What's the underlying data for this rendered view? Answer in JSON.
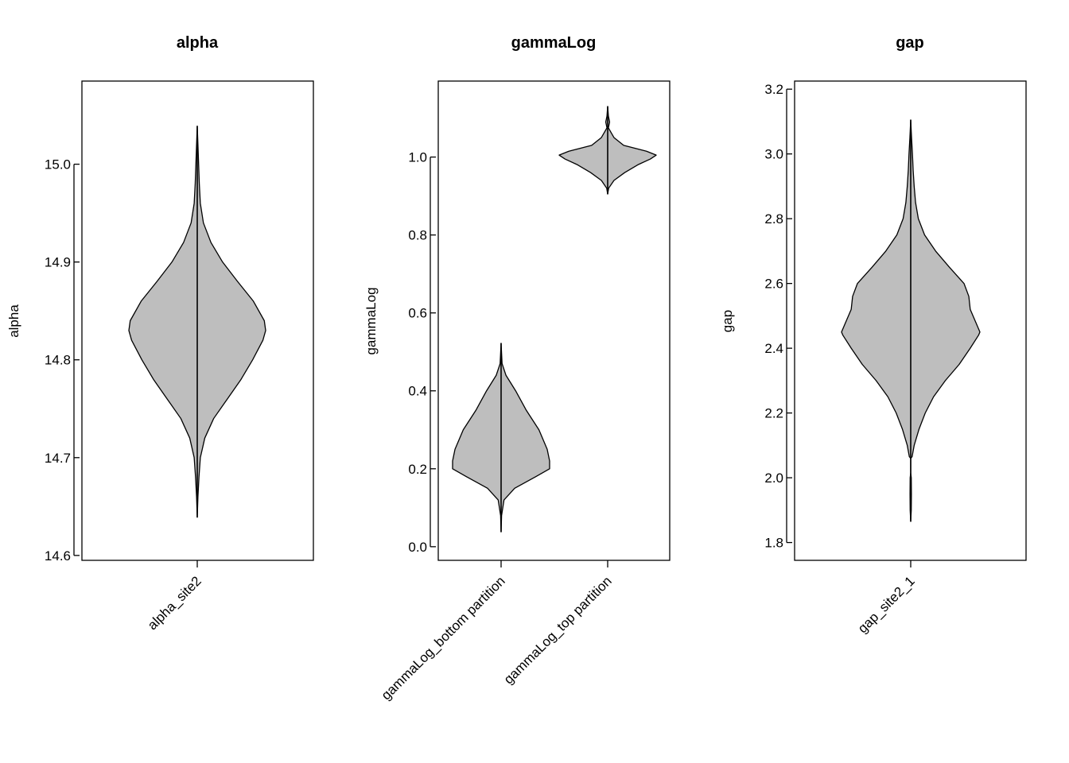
{
  "chart_data": [
    {
      "type": "violin",
      "title": "alpha",
      "ylabel": "alpha",
      "ylim": [
        14.595,
        15.085
      ],
      "yticks": [
        "14.6",
        "14.7",
        "14.8",
        "14.9",
        "15.0"
      ],
      "ytick_values": [
        14.6,
        14.7,
        14.8,
        14.9,
        15.0
      ],
      "categories": [
        "alpha_site2"
      ],
      "violins": [
        {
          "name": "alpha_site2",
          "min": 14.639,
          "max": 15.039,
          "profile": [
            [
              14.639,
              0.0
            ],
            [
              14.66,
              0.01
            ],
            [
              14.68,
              0.025
            ],
            [
              14.7,
              0.045
            ],
            [
              14.72,
              0.11
            ],
            [
              14.74,
              0.24
            ],
            [
              14.76,
              0.44
            ],
            [
              14.78,
              0.64
            ],
            [
              14.8,
              0.81
            ],
            [
              14.82,
              0.96
            ],
            [
              14.83,
              1.0
            ],
            [
              14.84,
              0.98
            ],
            [
              14.86,
              0.82
            ],
            [
              14.88,
              0.59
            ],
            [
              14.9,
              0.37
            ],
            [
              14.92,
              0.2
            ],
            [
              14.94,
              0.09
            ],
            [
              14.96,
              0.045
            ],
            [
              14.98,
              0.03
            ],
            [
              15.0,
              0.02
            ],
            [
              15.02,
              0.01
            ],
            [
              15.039,
              0.0
            ]
          ]
        }
      ],
      "fill_color": "#bebebe"
    },
    {
      "type": "violin",
      "title": "gammaLog",
      "ylabel": "gammaLog",
      "ylim": [
        -0.035,
        1.195
      ],
      "yticks": [
        "0.0",
        "0.2",
        "0.4",
        "0.6",
        "0.8",
        "1.0"
      ],
      "ytick_values": [
        0.0,
        0.2,
        0.4,
        0.6,
        0.8,
        1.0
      ],
      "categories": [
        "gammaLog_bottom partition",
        "gammaLog_top partition"
      ],
      "violins": [
        {
          "name": "gammaLog_bottom partition",
          "min": 0.038,
          "max": 0.522,
          "profile": [
            [
              0.038,
              0.0
            ],
            [
              0.08,
              0.01
            ],
            [
              0.12,
              0.06
            ],
            [
              0.15,
              0.28
            ],
            [
              0.18,
              0.72
            ],
            [
              0.2,
              1.0
            ],
            [
              0.22,
              1.0
            ],
            [
              0.25,
              0.95
            ],
            [
              0.3,
              0.78
            ],
            [
              0.35,
              0.52
            ],
            [
              0.4,
              0.3
            ],
            [
              0.44,
              0.1
            ],
            [
              0.47,
              0.02
            ],
            [
              0.522,
              0.0
            ]
          ]
        },
        {
          "name": "gammaLog_top partition",
          "min": 0.905,
          "max": 1.13,
          "profile": [
            [
              0.905,
              0.0
            ],
            [
              0.92,
              0.02
            ],
            [
              0.94,
              0.13
            ],
            [
              0.96,
              0.35
            ],
            [
              0.98,
              0.62
            ],
            [
              0.995,
              0.88
            ],
            [
              1.005,
              1.0
            ],
            [
              1.015,
              0.8
            ],
            [
              1.03,
              0.33
            ],
            [
              1.05,
              0.13
            ],
            [
              1.065,
              0.06
            ],
            [
              1.075,
              0.015
            ],
            [
              1.09,
              0.04
            ],
            [
              1.105,
              0.015
            ],
            [
              1.13,
              0.0
            ]
          ]
        }
      ],
      "fill_color": "#bebebe"
    },
    {
      "type": "violin",
      "title": "gap",
      "ylabel": "gap",
      "ylim": [
        1.745,
        3.225
      ],
      "yticks": [
        "1.8",
        "2.0",
        "2.2",
        "2.4",
        "2.6",
        "2.8",
        "3.0",
        "3.2"
      ],
      "ytick_values": [
        1.8,
        2.0,
        2.2,
        2.4,
        2.6,
        2.8,
        3.0,
        3.2
      ],
      "categories": [
        "gap_site2_1"
      ],
      "violins": [
        {
          "name": "gap_site2_1",
          "min": 1.865,
          "max": 3.105,
          "profile": [
            [
              1.865,
              0.0
            ],
            [
              1.9,
              0.008
            ],
            [
              1.95,
              0.01
            ],
            [
              2.0,
              0.008
            ],
            [
              2.015,
              0.0
            ],
            [
              2.06,
              0.0
            ],
            [
              2.065,
              0.02
            ],
            [
              2.1,
              0.05
            ],
            [
              2.15,
              0.12
            ],
            [
              2.2,
              0.21
            ],
            [
              2.25,
              0.33
            ],
            [
              2.3,
              0.5
            ],
            [
              2.35,
              0.7
            ],
            [
              2.4,
              0.86
            ],
            [
              2.44,
              0.98
            ],
            [
              2.45,
              1.0
            ],
            [
              2.48,
              0.94
            ],
            [
              2.52,
              0.86
            ],
            [
              2.56,
              0.84
            ],
            [
              2.6,
              0.77
            ],
            [
              2.65,
              0.56
            ],
            [
              2.7,
              0.36
            ],
            [
              2.75,
              0.2
            ],
            [
              2.8,
              0.11
            ],
            [
              2.85,
              0.07
            ],
            [
              2.9,
              0.05
            ],
            [
              2.95,
              0.035
            ],
            [
              3.0,
              0.025
            ],
            [
              3.05,
              0.012
            ],
            [
              3.105,
              0.0
            ]
          ]
        }
      ],
      "fill_color": "#bebebe"
    }
  ]
}
